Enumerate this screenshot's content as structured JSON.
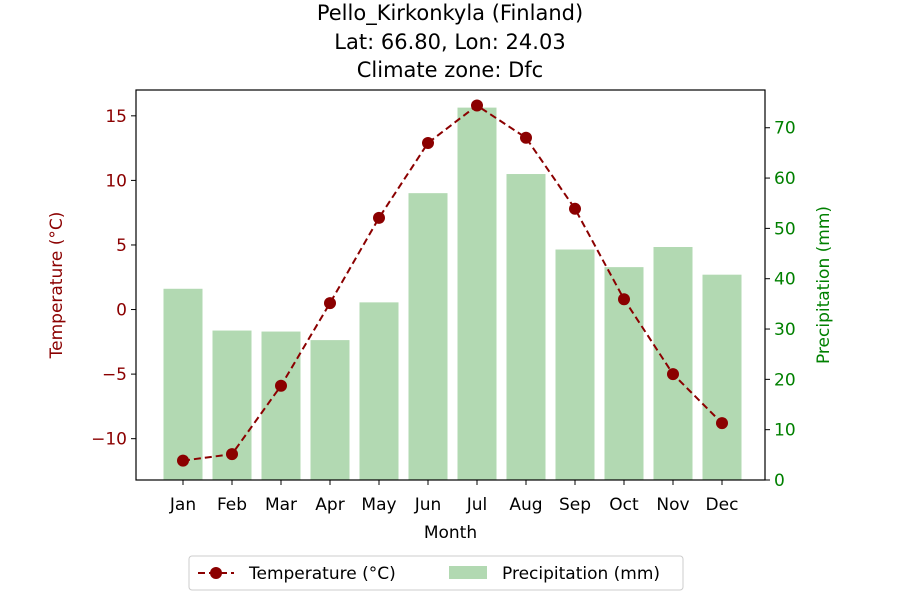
{
  "chart_data": {
    "type": "bar+line",
    "title_lines": [
      "Pello_Kirkonkyla (Finland)",
      "Lat: 66.80, Lon: 24.03",
      "Climate zone: Dfc"
    ],
    "xlabel": "Month",
    "y_left_label": "Temperature (°C)",
    "y_right_label": "Precipitation (mm)",
    "categories": [
      "Jan",
      "Feb",
      "Mar",
      "Apr",
      "May",
      "Jun",
      "Jul",
      "Aug",
      "Sep",
      "Oct",
      "Nov",
      "Dec"
    ],
    "y_left_lim": [
      -13.2,
      17.0
    ],
    "y_left_ticks": [
      -10,
      -5,
      0,
      5,
      10,
      15
    ],
    "y_left_tick_labels": [
      "−10",
      "−5",
      "0",
      "5",
      "10",
      "15"
    ],
    "y_right_lim": [
      0,
      77.5
    ],
    "y_right_ticks": [
      0,
      10,
      20,
      30,
      40,
      50,
      60,
      70
    ],
    "y_right_tick_labels": [
      "0",
      "10",
      "20",
      "30",
      "40",
      "50",
      "60",
      "70"
    ],
    "series": [
      {
        "name": "Temperature (°C)",
        "kind": "line",
        "axis": "left",
        "color": "#8b0000",
        "line_style": "dashed",
        "marker": "circle",
        "values": [
          -11.7,
          -11.2,
          -5.9,
          0.5,
          7.1,
          12.9,
          15.8,
          13.3,
          7.8,
          0.8,
          -5.0,
          -8.8
        ]
      },
      {
        "name": "Precipitation (mm)",
        "kind": "bar",
        "axis": "right",
        "color": "#b2d9b2",
        "values": [
          38.0,
          29.7,
          29.5,
          27.8,
          35.3,
          57.0,
          74.0,
          60.8,
          45.8,
          42.3,
          46.3,
          40.8
        ]
      }
    ],
    "left_axis_color": "#8b0000",
    "right_axis_color": "#008000",
    "grid": false,
    "legend_position": "bottom-center"
  }
}
